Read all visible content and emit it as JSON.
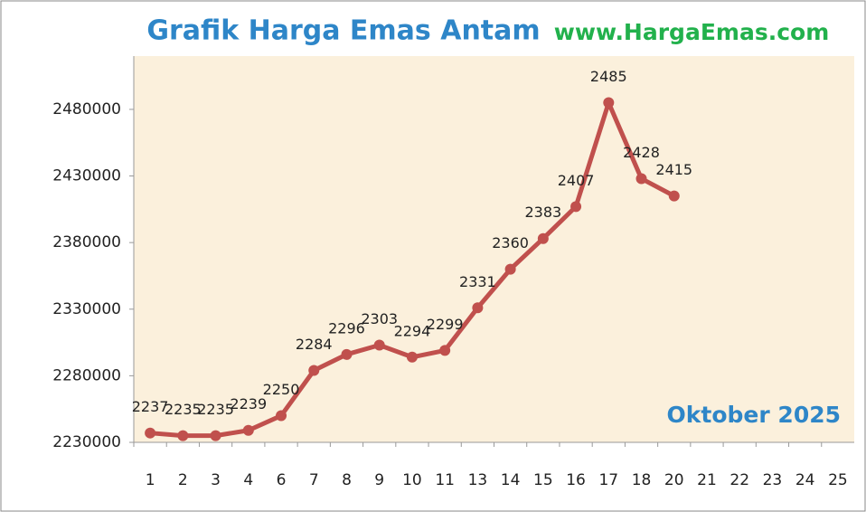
{
  "chart_data": {
    "type": "line",
    "title": "Grafik Harga Emas Antam",
    "annotations": [
      "www.HargaEmas.com",
      "Oktober 2025"
    ],
    "categories": [
      "1",
      "2",
      "3",
      "4",
      "6",
      "7",
      "8",
      "9",
      "10",
      "11",
      "13",
      "14",
      "15",
      "16",
      "17",
      "18",
      "20",
      "21",
      "22",
      "23",
      "24",
      "25"
    ],
    "series": [
      {
        "name": "Harga",
        "color": "#c0504d",
        "values": [
          2237000,
          2235000,
          2235000,
          2239000,
          2250000,
          2284000,
          2296000,
          2303000,
          2294000,
          2299000,
          2331000,
          2360000,
          2383000,
          2407000,
          2485000,
          2428000,
          2415000,
          null,
          null,
          null,
          null,
          null
        ],
        "value_labels": [
          "2237",
          "2235",
          "2235",
          "2239",
          "2250",
          "2284",
          "2296",
          "2303",
          "2294",
          "2299",
          "2331",
          "2360",
          "2383",
          "2407",
          "2485",
          "2428",
          "2415",
          null,
          null,
          null,
          null,
          null
        ]
      }
    ],
    "ylim": [
      2230000,
      2520000
    ],
    "yticks": [
      2230000,
      2280000,
      2330000,
      2380000,
      2430000,
      2480000
    ],
    "grid": false
  }
}
